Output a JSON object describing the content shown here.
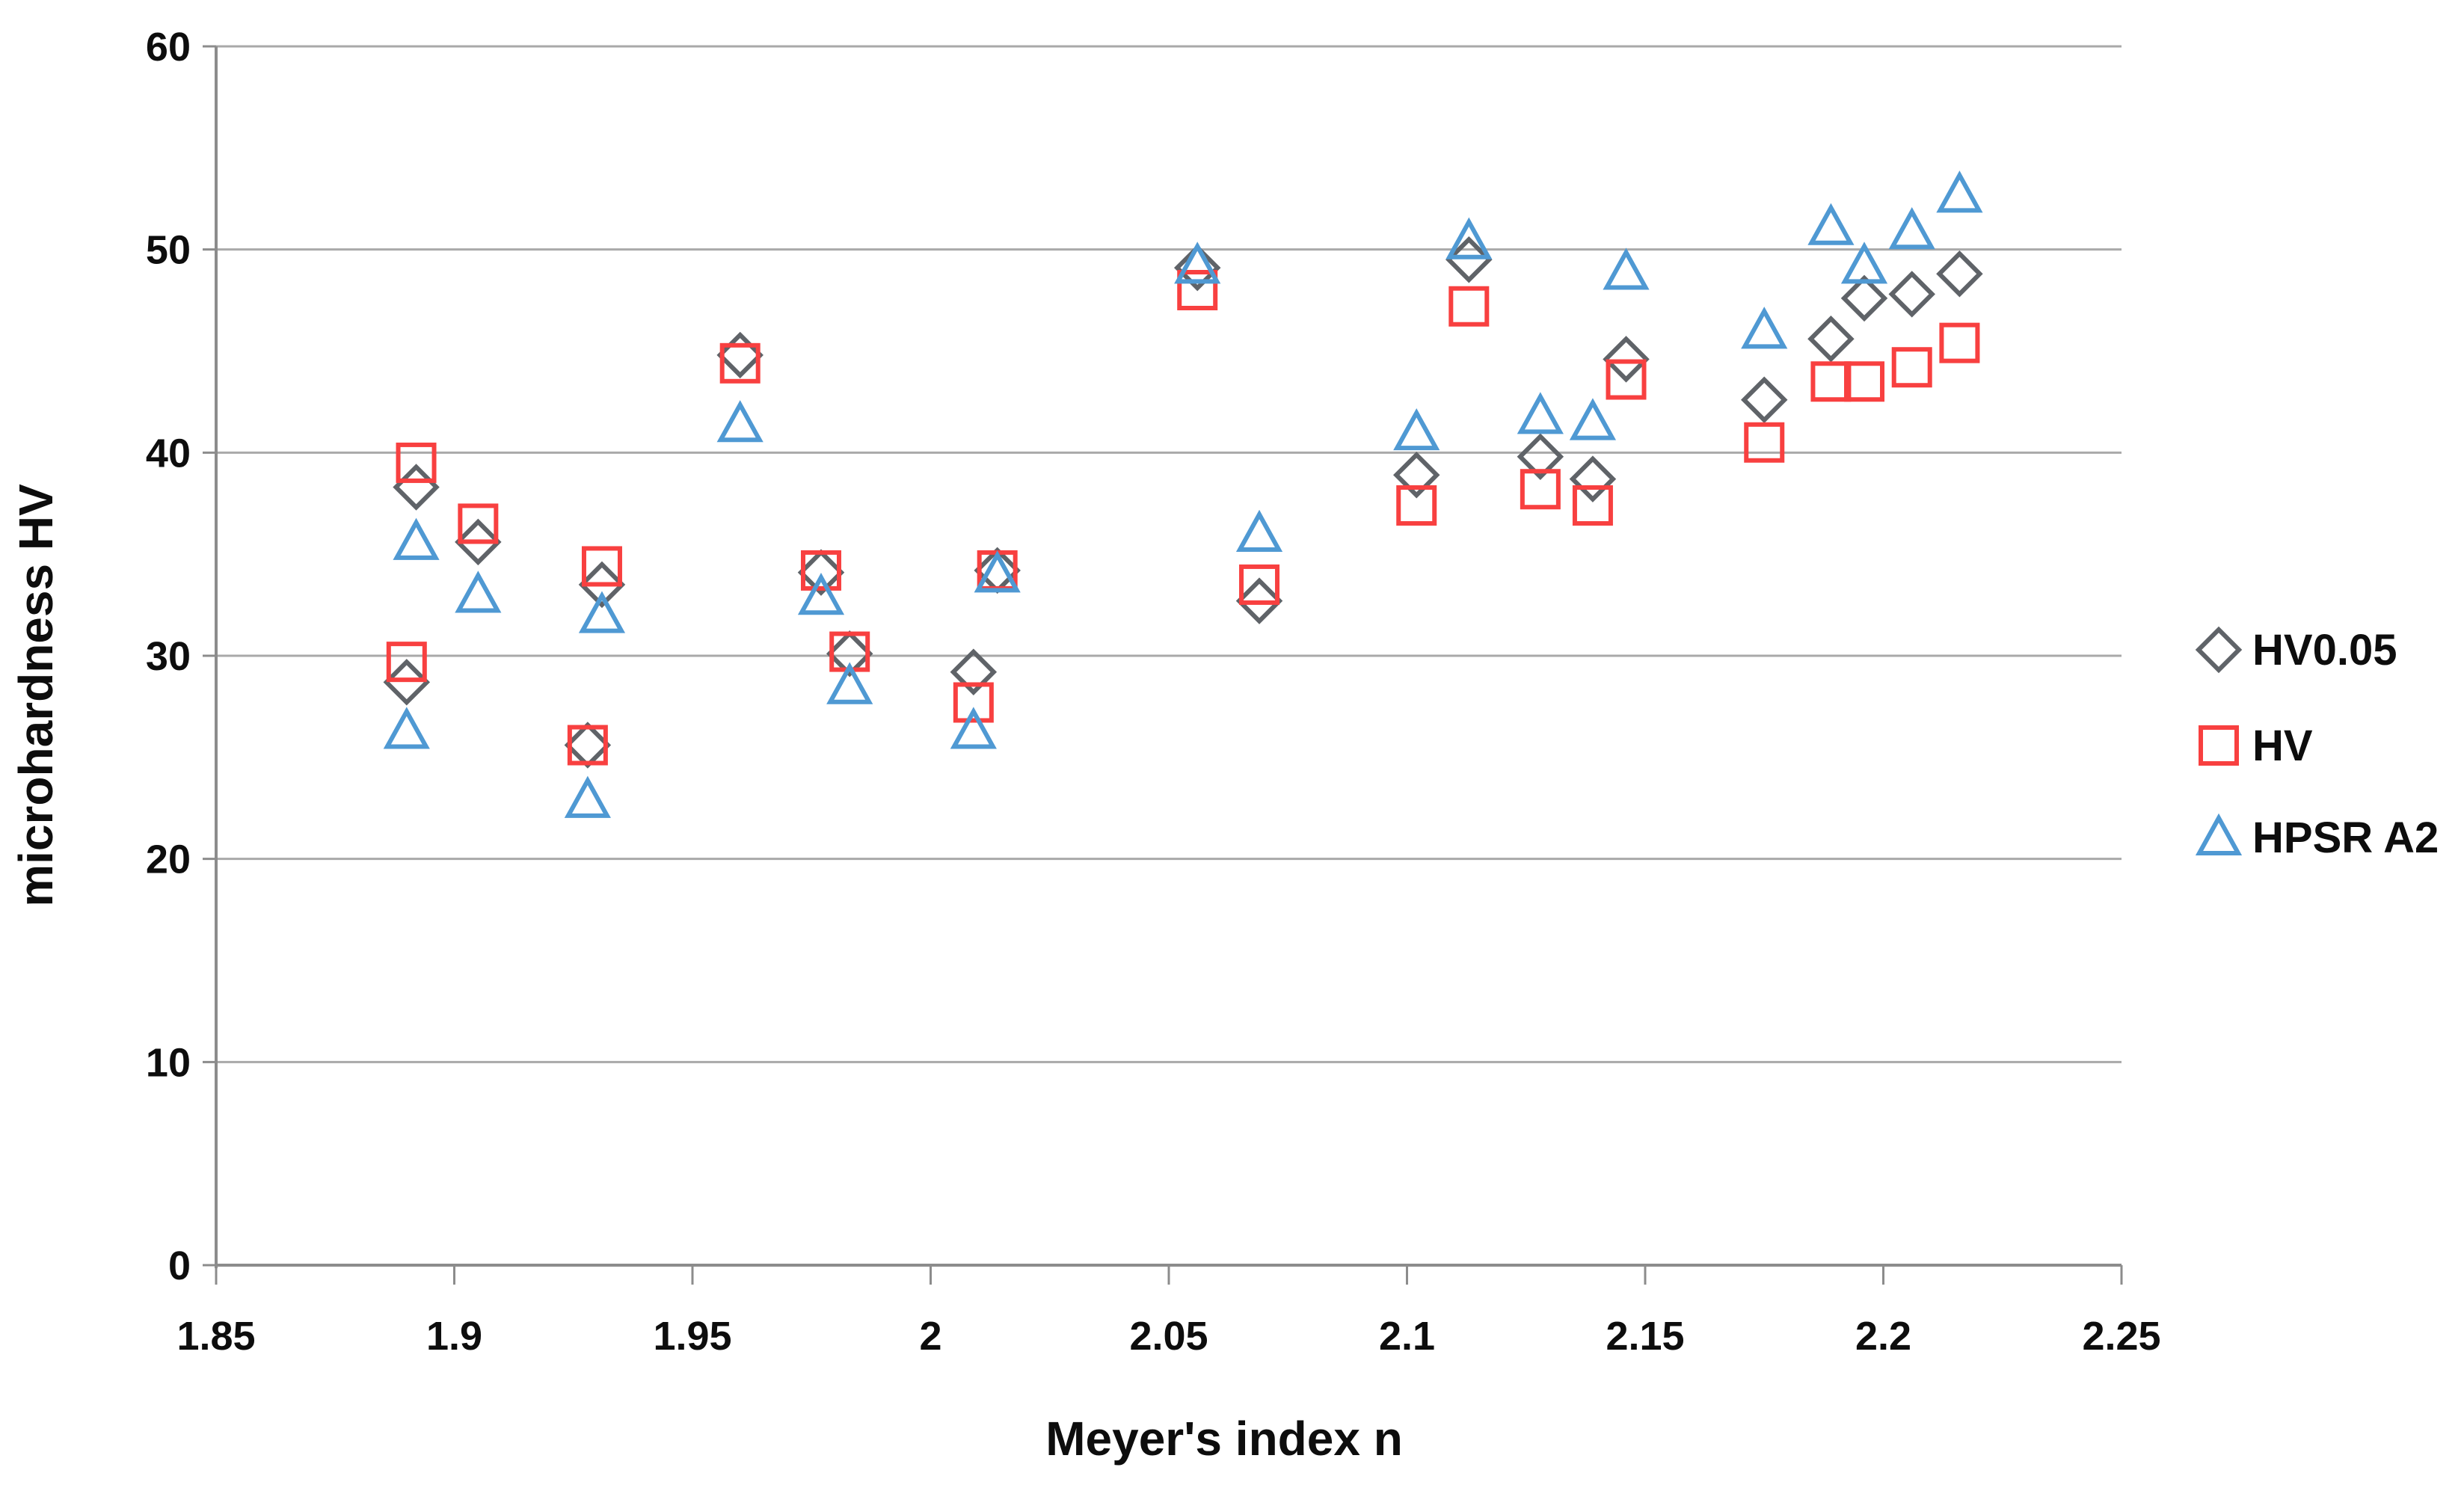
{
  "chart_data": {
    "type": "scatter",
    "title": "",
    "xlabel": "Meyer's index n",
    "ylabel": "microhardness HV",
    "xlim": [
      1.85,
      2.25
    ],
    "ylim": [
      0,
      60
    ],
    "x_tick_labels": [
      "1.85",
      "1.9",
      "1.95",
      "2",
      "2.05",
      "2.1",
      "2.15",
      "2.2",
      "2.25"
    ],
    "x_ticks": [
      1.85,
      1.9,
      1.95,
      2,
      2.05,
      2.1,
      2.15,
      2.2,
      2.25
    ],
    "y_tick_labels": [
      "0",
      "10",
      "20",
      "30",
      "40",
      "50",
      "60"
    ],
    "y_ticks": [
      0,
      10,
      20,
      30,
      40,
      50,
      60
    ],
    "grid": true,
    "legend_position": "right",
    "series": [
      {
        "name": "HV0.05",
        "marker": "diamond",
        "color": "#5f6368",
        "points": [
          [
            1.89,
            28.7
          ],
          [
            1.892,
            38.3
          ],
          [
            1.905,
            35.6
          ],
          [
            1.928,
            25.6
          ],
          [
            1.931,
            33.5
          ],
          [
            1.96,
            44.8
          ],
          [
            1.977,
            34.1
          ],
          [
            1.983,
            30.1
          ],
          [
            2.009,
            29.2
          ],
          [
            2.014,
            34.2
          ],
          [
            2.056,
            49.1
          ],
          [
            2.069,
            32.7
          ],
          [
            2.102,
            38.9
          ],
          [
            2.113,
            49.5
          ],
          [
            2.128,
            39.8
          ],
          [
            2.139,
            38.7
          ],
          [
            2.146,
            44.6
          ],
          [
            2.175,
            42.6
          ],
          [
            2.189,
            45.6
          ],
          [
            2.196,
            47.6
          ],
          [
            2.206,
            47.8
          ],
          [
            2.216,
            48.8
          ]
        ]
      },
      {
        "name": "HV",
        "marker": "square",
        "color": "#f84040",
        "points": [
          [
            1.89,
            29.7
          ],
          [
            1.892,
            39.5
          ],
          [
            1.905,
            36.5
          ],
          [
            1.928,
            25.6
          ],
          [
            1.931,
            34.4
          ],
          [
            1.96,
            44.4
          ],
          [
            1.977,
            34.2
          ],
          [
            1.983,
            30.2
          ],
          [
            2.009,
            27.7
          ],
          [
            2.014,
            34.2
          ],
          [
            2.056,
            48.0
          ],
          [
            2.069,
            33.5
          ],
          [
            2.102,
            37.4
          ],
          [
            2.113,
            47.2
          ],
          [
            2.128,
            38.2
          ],
          [
            2.139,
            37.4
          ],
          [
            2.146,
            43.6
          ],
          [
            2.175,
            40.5
          ],
          [
            2.189,
            43.5
          ],
          [
            2.196,
            43.5
          ],
          [
            2.206,
            44.2
          ],
          [
            2.216,
            45.4
          ]
        ]
      },
      {
        "name": "HPSR A2",
        "marker": "triangle",
        "color": "#4f99d3",
        "points": [
          [
            1.89,
            26.3
          ],
          [
            1.892,
            35.6
          ],
          [
            1.905,
            33.0
          ],
          [
            1.928,
            22.9
          ],
          [
            1.931,
            32.0
          ],
          [
            1.96,
            41.4
          ],
          [
            1.977,
            32.9
          ],
          [
            1.983,
            28.5
          ],
          [
            2.009,
            26.3
          ],
          [
            2.014,
            34.0
          ],
          [
            2.056,
            49.2
          ],
          [
            2.069,
            36.0
          ],
          [
            2.102,
            41.0
          ],
          [
            2.113,
            50.4
          ],
          [
            2.128,
            41.8
          ],
          [
            2.139,
            41.5
          ],
          [
            2.146,
            48.9
          ],
          [
            2.175,
            46.0
          ],
          [
            2.189,
            51.1
          ],
          [
            2.196,
            49.2
          ],
          [
            2.206,
            50.9
          ],
          [
            2.216,
            52.7
          ]
        ]
      }
    ]
  },
  "colors": {
    "background": "#ffffff",
    "gridline": "#a9a9a9",
    "axis": "#8c8c8c",
    "text": "#0d0d0d"
  }
}
